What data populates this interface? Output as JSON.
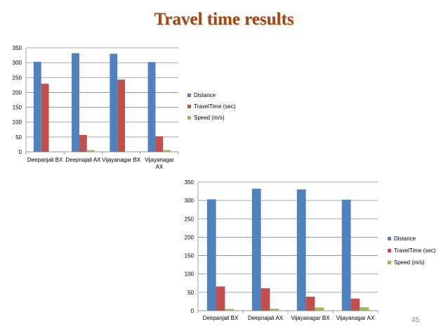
{
  "slide": {
    "title": "Travel time results",
    "page_number": "45",
    "colors": {
      "title": "#9c4a10",
      "distance": "#4f81bd",
      "traveltime": "#c0504d",
      "speed": "#9bbb59"
    }
  },
  "chart_data": [
    {
      "type": "bar",
      "categories": [
        "Deepanjali BX",
        "Deepnajali AX",
        "Vijayanagar BX",
        "Vijayanagar AX"
      ],
      "category_lines": [
        [
          "Deepanjali BX"
        ],
        [
          "Deepnajali AX"
        ],
        [
          "Vijayanagar BX"
        ],
        [
          "Vijayanagar",
          "AX"
        ]
      ],
      "series": [
        {
          "name": "Distance",
          "color": "#4f81bd",
          "values": [
            303,
            332,
            330,
            302
          ]
        },
        {
          "name": "TravelTime (sec)",
          "color": "#c0504d",
          "values": [
            229,
            57,
            243,
            52
          ]
        },
        {
          "name": "Speed (m/s)",
          "color": "#9bbb59",
          "values": [
            1.3,
            5.8,
            1.4,
            5.8
          ]
        }
      ],
      "yticks": [
        "0",
        "50",
        "100",
        "150",
        "200",
        "250",
        "300",
        "350"
      ],
      "ylim": [
        0,
        350
      ],
      "grid": true,
      "legend": "right"
    },
    {
      "type": "bar",
      "categories": [
        "Deepanjali BX",
        "Deepnajali AX",
        "Vijayanagar BX",
        "Vijayanagar AX"
      ],
      "category_lines": [
        [
          "Deepanjali BX"
        ],
        [
          "Deepnajali AX"
        ],
        [
          "Vijayanagar BX"
        ],
        [
          "Vijayanagar AX"
        ]
      ],
      "series": [
        {
          "name": "Distance",
          "color": "#4f81bd",
          "values": [
            303,
            332,
            330,
            302
          ]
        },
        {
          "name": "TravelTime (sec)",
          "color": "#c0504d",
          "values": [
            66,
            61,
            38,
            33
          ]
        },
        {
          "name": "Speed (m/s)",
          "color": "#9bbb59",
          "values": [
            4.6,
            5.4,
            8.7,
            9.2
          ]
        }
      ],
      "yticks": [
        "0",
        "50",
        "100",
        "150",
        "200",
        "250",
        "300",
        "350"
      ],
      "ylim": [
        0,
        350
      ],
      "grid": true,
      "legend": "right"
    }
  ]
}
